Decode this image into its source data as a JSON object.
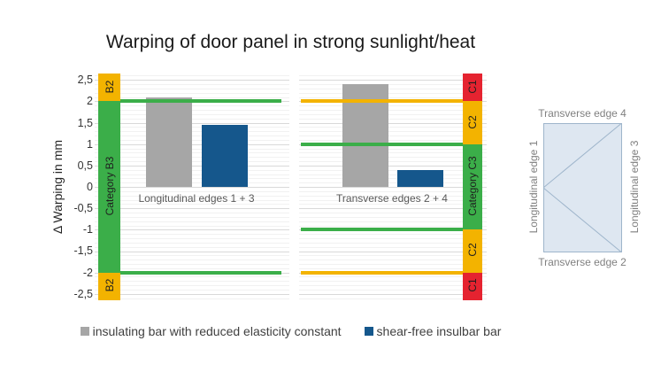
{
  "title": "Warping of door panel in strong sunlight/heat",
  "y_axis": {
    "label": "Δ Warping in mm",
    "ticks": [
      {
        "value": 2.5,
        "label": "2,5"
      },
      {
        "value": 2,
        "label": "2"
      },
      {
        "value": 1.5,
        "label": "1,5"
      },
      {
        "value": 1,
        "label": "1"
      },
      {
        "value": 0.5,
        "label": "0,5"
      },
      {
        "value": 0,
        "label": "0"
      },
      {
        "value": -0.5,
        "label": "-0,5"
      },
      {
        "value": -1,
        "label": "-1"
      },
      {
        "value": -1.5,
        "label": "-1,5"
      },
      {
        "value": -2,
        "label": "-2"
      },
      {
        "value": -2.5,
        "label": "-2,5"
      }
    ]
  },
  "chart_data": {
    "type": "bar",
    "title": "Warping of door panel in strong sunlight/heat",
    "ylabel": "Δ Warping in mm",
    "ylim": [
      -2.65,
      2.65
    ],
    "grid": {
      "major_step": 0.5,
      "minor_step": 0.1,
      "gap_between_panels": true
    },
    "categories": [
      "Longitudinal edges 1 + 3",
      "Transverse edges 2 + 4"
    ],
    "series": [
      {
        "name": "insulating bar with reduced elasticity constant",
        "color": "#a6a6a6",
        "values": [
          2.1,
          2.4
        ]
      },
      {
        "name": "shear-free insulbar bar",
        "color": "#15578c",
        "values": [
          1.45,
          0.4
        ]
      }
    ],
    "limit_lines": {
      "panel_longitudinal": [
        {
          "value": 2,
          "color": "#3bae49"
        },
        {
          "value": -2,
          "color": "#3bae49"
        }
      ],
      "panel_transverse": [
        {
          "value": 2,
          "color": "#f3b300"
        },
        {
          "value": 1,
          "color": "#3bae49"
        },
        {
          "value": -1,
          "color": "#3bae49"
        },
        {
          "value": -2,
          "color": "#f3b300"
        }
      ]
    },
    "category_bands": {
      "left_column": [
        {
          "label": "B2",
          "from": 2,
          "to": 2.65,
          "color": "#f3b300"
        },
        {
          "label": "Category B3",
          "from": -2,
          "to": 2,
          "color": "#3bae49"
        },
        {
          "label": "B2",
          "from": -2.65,
          "to": -2,
          "color": "#f3b300"
        }
      ],
      "right_column": [
        {
          "label": "C1",
          "from": 2,
          "to": 2.65,
          "color": "#e52330"
        },
        {
          "label": "C2",
          "from": 1,
          "to": 2,
          "color": "#f3b300"
        },
        {
          "label": "Category C3",
          "from": -1,
          "to": 1,
          "color": "#3bae49"
        },
        {
          "label": "C2",
          "from": -2,
          "to": -1,
          "color": "#f3b300"
        },
        {
          "label": "C1",
          "from": -2.65,
          "to": -2,
          "color": "#e52330"
        }
      ]
    }
  },
  "legend": [
    {
      "label": "insulating bar with reduced elasticity constant",
      "color": "#a6a6a6"
    },
    {
      "label": "shear-free insulbar bar",
      "color": "#15578c"
    }
  ],
  "diagram": {
    "fill": "#dee7f1",
    "stroke": "#9eb5cb",
    "top_label": "Transverse edge 4",
    "bottom_label": "Transverse edge 2",
    "left_label": "Longitudinal edge 1",
    "right_label": "Longitudinal edge 3"
  }
}
